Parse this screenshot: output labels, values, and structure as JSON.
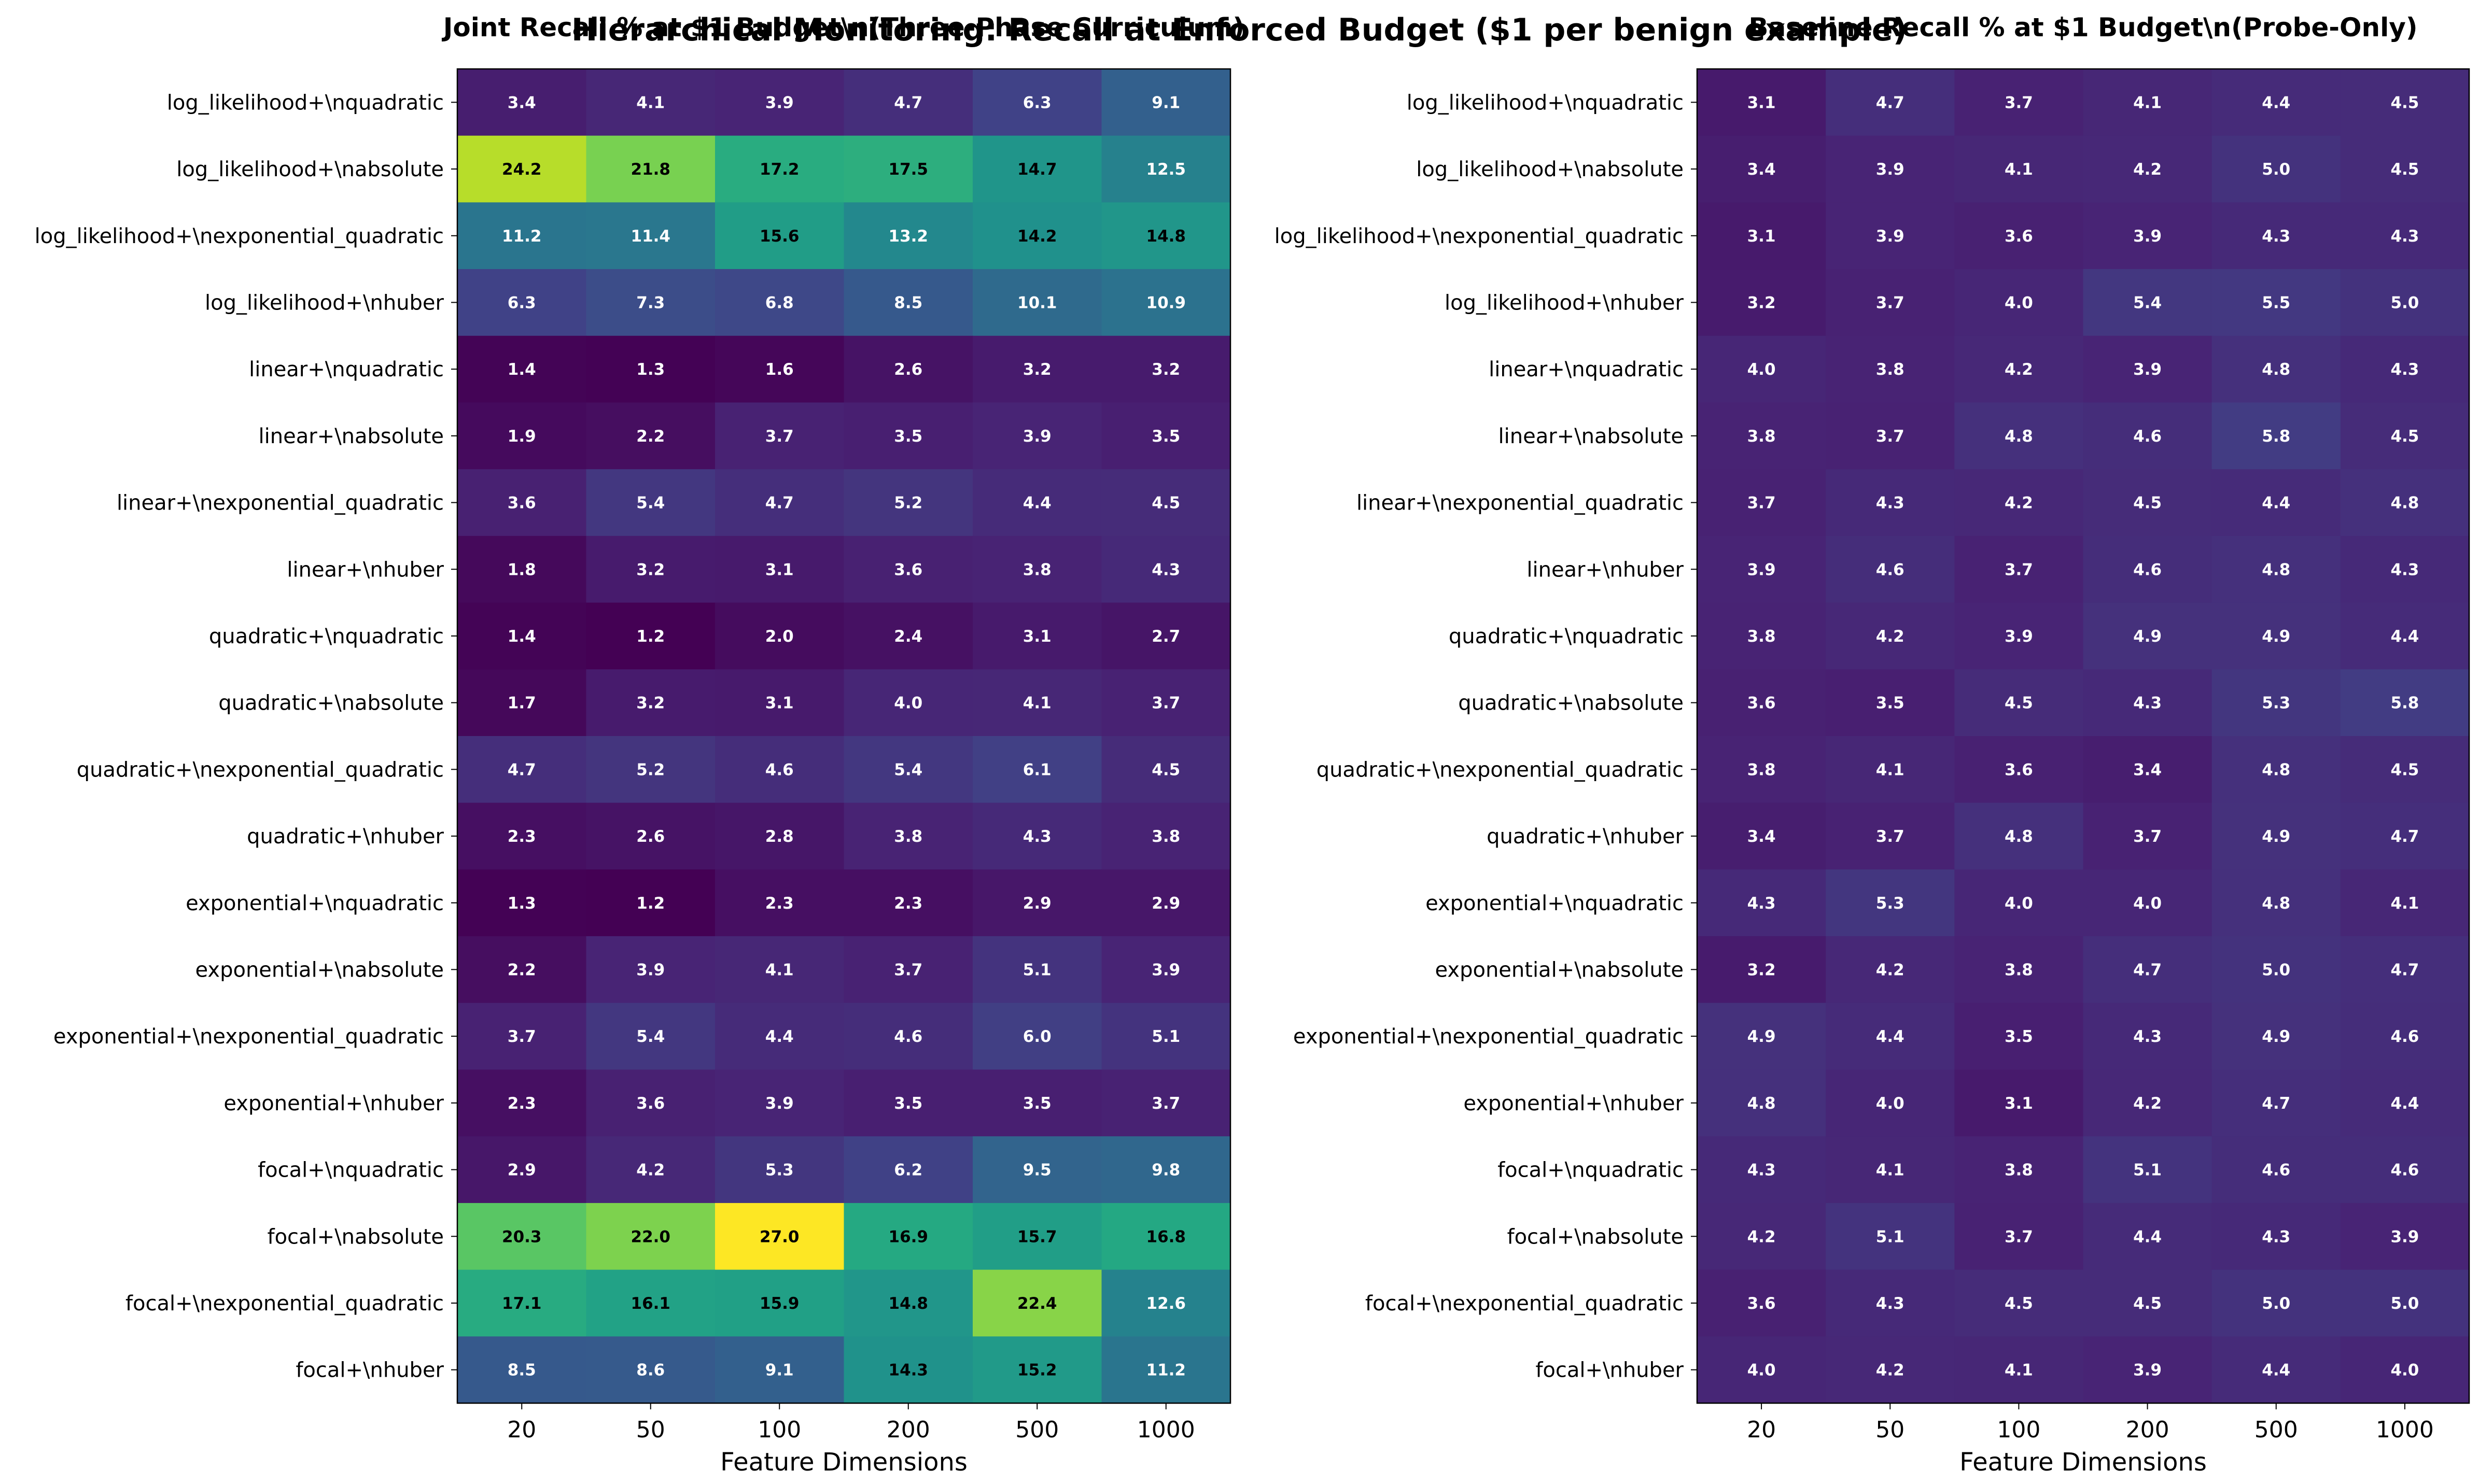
{
  "suptitle": "Hierarchical Monitoring: Recall at Enforced Budget ($1 per benign example)",
  "chart_data": [
    {
      "type": "heatmap",
      "title": "Joint Recall % at $1 Budget\\n(Three-Phase Curriculum)",
      "xlabel": "Feature Dimensions",
      "x": [
        "20",
        "50",
        "100",
        "200",
        "500",
        "1000"
      ],
      "y": [
        "log_likelihood+\\nquadratic",
        "log_likelihood+\\nabsolute",
        "log_likelihood+\\nexponential_quadratic",
        "log_likelihood+\\nhuber",
        "linear+\\nquadratic",
        "linear+\\nabsolute",
        "linear+\\nexponential_quadratic",
        "linear+\\nhuber",
        "quadratic+\\nquadratic",
        "quadratic+\\nabsolute",
        "quadratic+\\nexponential_quadratic",
        "quadratic+\\nhuber",
        "exponential+\\nquadratic",
        "exponential+\\nabsolute",
        "exponential+\\nexponential_quadratic",
        "exponential+\\nhuber",
        "focal+\\nquadratic",
        "focal+\\nabsolute",
        "focal+\\nexponential_quadratic",
        "focal+\\nhuber"
      ],
      "values": [
        [
          3.4,
          4.1,
          3.9,
          4.7,
          6.3,
          9.1
        ],
        [
          24.2,
          21.8,
          17.2,
          17.5,
          14.7,
          12.5
        ],
        [
          11.2,
          11.4,
          15.6,
          13.2,
          14.2,
          14.8
        ],
        [
          6.3,
          7.3,
          6.8,
          8.5,
          10.1,
          10.9
        ],
        [
          1.4,
          1.3,
          1.6,
          2.6,
          3.2,
          3.2
        ],
        [
          1.9,
          2.2,
          3.7,
          3.5,
          3.9,
          3.5
        ],
        [
          3.6,
          5.4,
          4.7,
          5.2,
          4.4,
          4.5
        ],
        [
          1.8,
          3.2,
          3.1,
          3.6,
          3.8,
          4.3
        ],
        [
          1.4,
          1.2,
          2.0,
          2.4,
          3.1,
          2.7
        ],
        [
          1.7,
          3.2,
          3.1,
          4.0,
          4.1,
          3.7
        ],
        [
          4.7,
          5.2,
          4.6,
          5.4,
          6.1,
          4.5
        ],
        [
          2.3,
          2.6,
          2.8,
          3.8,
          4.3,
          3.8
        ],
        [
          1.3,
          1.2,
          2.3,
          2.3,
          2.9,
          2.9
        ],
        [
          2.2,
          3.9,
          4.1,
          3.7,
          5.1,
          3.9
        ],
        [
          3.7,
          5.4,
          4.4,
          4.6,
          6.0,
          5.1
        ],
        [
          2.3,
          3.6,
          3.9,
          3.5,
          3.5,
          3.7
        ],
        [
          2.9,
          4.2,
          5.3,
          6.2,
          9.5,
          9.8
        ],
        [
          20.3,
          22.0,
          27.0,
          16.9,
          15.7,
          16.8
        ],
        [
          17.1,
          16.1,
          15.9,
          14.8,
          22.4,
          12.6
        ],
        [
          8.5,
          8.6,
          9.1,
          14.3,
          15.2,
          11.2
        ]
      ],
      "colormap": "viridis",
      "vmin": 1.2,
      "vmax": 27.0
    },
    {
      "type": "heatmap",
      "title": "Baseline Recall % at $1 Budget\\n(Probe-Only)",
      "xlabel": "Feature Dimensions",
      "x": [
        "20",
        "50",
        "100",
        "200",
        "500",
        "1000"
      ],
      "y": [
        "log_likelihood+\\nquadratic",
        "log_likelihood+\\nabsolute",
        "log_likelihood+\\nexponential_quadratic",
        "log_likelihood+\\nhuber",
        "linear+\\nquadratic",
        "linear+\\nabsolute",
        "linear+\\nexponential_quadratic",
        "linear+\\nhuber",
        "quadratic+\\nquadratic",
        "quadratic+\\nabsolute",
        "quadratic+\\nexponential_quadratic",
        "quadratic+\\nhuber",
        "exponential+\\nquadratic",
        "exponential+\\nabsolute",
        "exponential+\\nexponential_quadratic",
        "exponential+\\nhuber",
        "focal+\\nquadratic",
        "focal+\\nabsolute",
        "focal+\\nexponential_quadratic",
        "focal+\\nhuber"
      ],
      "values": [
        [
          3.1,
          4.7,
          3.7,
          4.1,
          4.4,
          4.5
        ],
        [
          3.4,
          3.9,
          4.1,
          4.2,
          5.0,
          4.5
        ],
        [
          3.1,
          3.9,
          3.6,
          3.9,
          4.3,
          4.3
        ],
        [
          3.2,
          3.7,
          4.0,
          5.4,
          5.5,
          5.0
        ],
        [
          4.0,
          3.8,
          4.2,
          3.9,
          4.8,
          4.3
        ],
        [
          3.8,
          3.7,
          4.8,
          4.6,
          5.8,
          4.5
        ],
        [
          3.7,
          4.3,
          4.2,
          4.5,
          4.4,
          4.8
        ],
        [
          3.9,
          4.6,
          3.7,
          4.6,
          4.8,
          4.3
        ],
        [
          3.8,
          4.2,
          3.9,
          4.9,
          4.9,
          4.4
        ],
        [
          3.6,
          3.5,
          4.5,
          4.3,
          5.3,
          5.8
        ],
        [
          3.8,
          4.1,
          3.6,
          3.4,
          4.8,
          4.5
        ],
        [
          3.4,
          3.7,
          4.8,
          3.7,
          4.9,
          4.7
        ],
        [
          4.3,
          5.3,
          4.0,
          4.0,
          4.8,
          4.1
        ],
        [
          3.2,
          4.2,
          3.8,
          4.7,
          5.0,
          4.7
        ],
        [
          4.9,
          4.4,
          3.5,
          4.3,
          4.9,
          4.6
        ],
        [
          4.8,
          4.0,
          3.1,
          4.2,
          4.7,
          4.4
        ],
        [
          4.3,
          4.1,
          3.8,
          5.1,
          4.6,
          4.6
        ],
        [
          4.2,
          5.1,
          3.7,
          4.4,
          4.3,
          3.9
        ],
        [
          3.6,
          4.3,
          4.5,
          4.5,
          5.0,
          5.0
        ],
        [
          4.0,
          4.2,
          4.1,
          3.9,
          4.4,
          4.0
        ]
      ],
      "colormap": "viridis",
      "vmin": 1.2,
      "vmax": 27.0
    }
  ]
}
